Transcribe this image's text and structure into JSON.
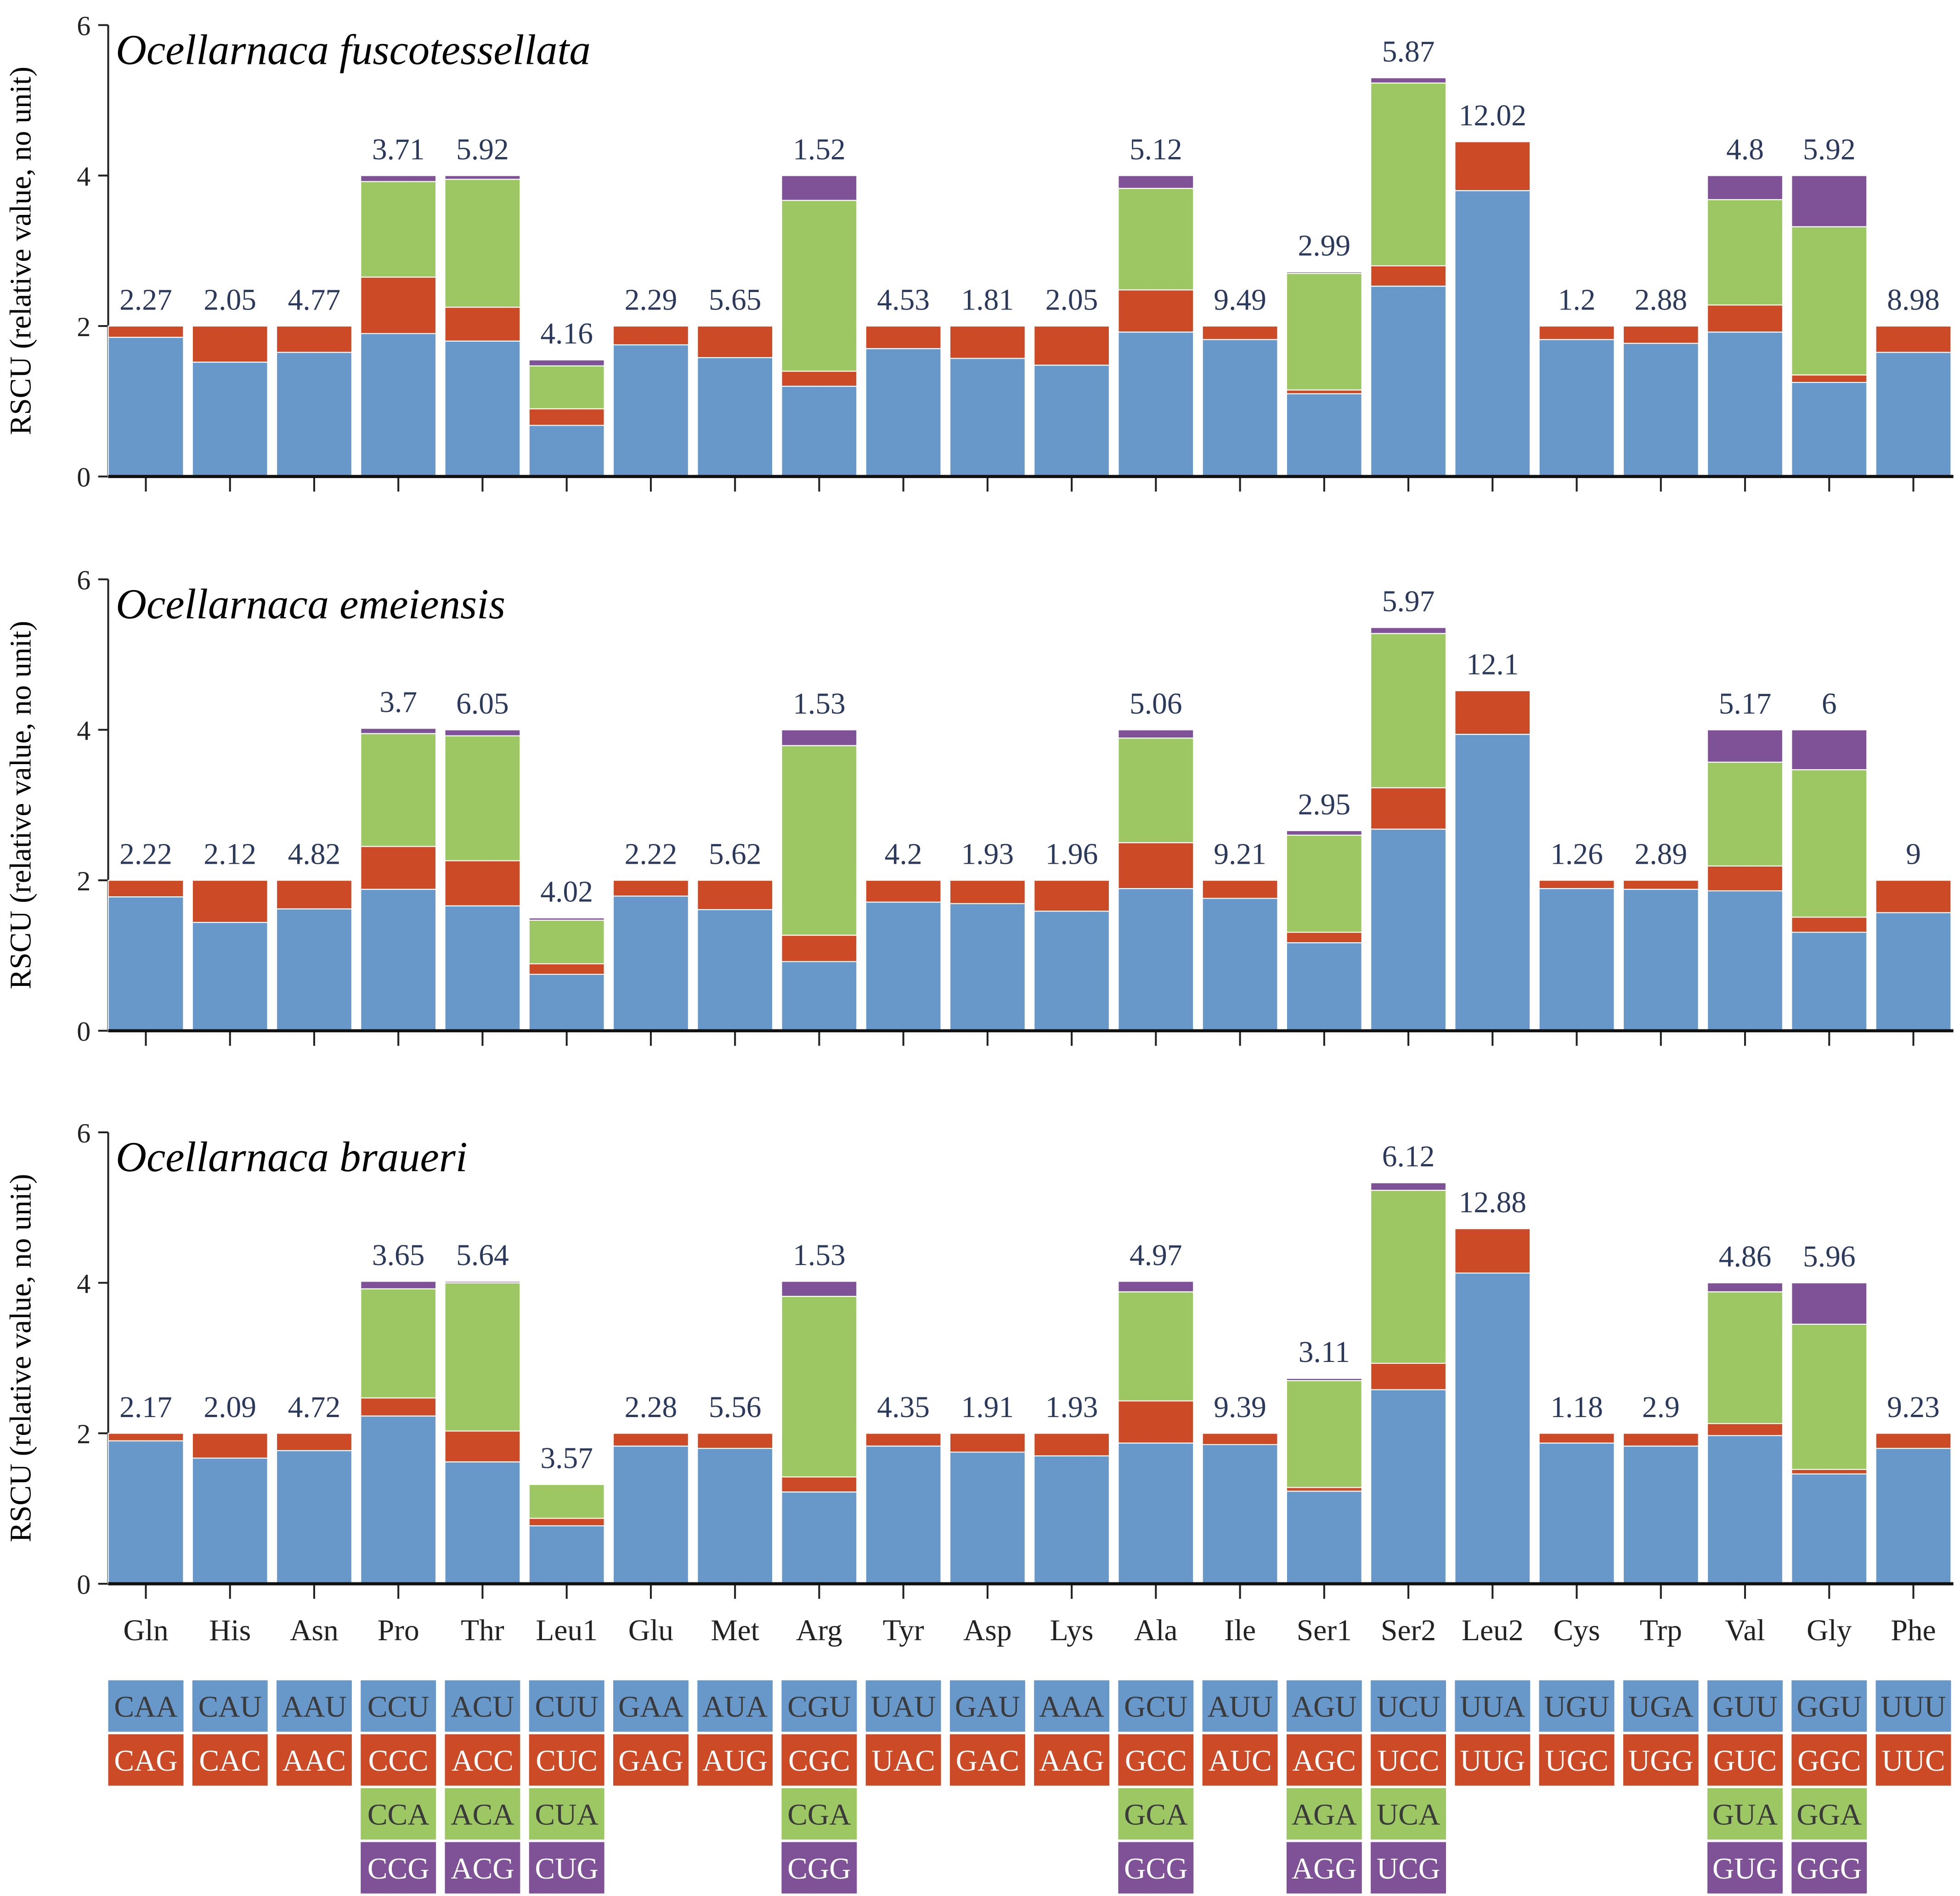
{
  "chart_data": {
    "type": "bar",
    "stacked": true,
    "ylabel": "RSCU (relative value, no unit)",
    "ylim": [
      0,
      6
    ],
    "yticks": [
      0,
      2,
      4,
      6
    ],
    "categories": [
      "Gln",
      "His",
      "Asn",
      "Pro",
      "Thr",
      "Leu1",
      "Glu",
      "Met",
      "Arg",
      "Tyr",
      "Asp",
      "Lys",
      "Ala",
      "Ile",
      "Ser1",
      "Ser2",
      "Leu2",
      "Cys",
      "Trp",
      "Val",
      "Gly",
      "Phe"
    ],
    "colors": [
      "#6798c9",
      "#cc4a26",
      "#9cc763",
      "#7f5298"
    ],
    "codons": [
      [
        "CAA",
        "CAG"
      ],
      [
        "CAU",
        "CAC"
      ],
      [
        "AAU",
        "AAC"
      ],
      [
        "CCU",
        "CCC",
        "CCA",
        "CCG"
      ],
      [
        "ACU",
        "ACC",
        "ACA",
        "ACG"
      ],
      [
        "CUU",
        "CUC",
        "CUA",
        "CUG"
      ],
      [
        "GAA",
        "GAG"
      ],
      [
        "AUA",
        "AUG"
      ],
      [
        "CGU",
        "CGC",
        "CGA",
        "CGG"
      ],
      [
        "UAU",
        "UAC"
      ],
      [
        "GAU",
        "GAC"
      ],
      [
        "AAA",
        "AAG"
      ],
      [
        "GCU",
        "GCC",
        "GCA",
        "GCG"
      ],
      [
        "AUU",
        "AUC"
      ],
      [
        "AGU",
        "AGC",
        "AGA",
        "AGG"
      ],
      [
        "UCU",
        "UCC",
        "UCA",
        "UCG"
      ],
      [
        "UUA",
        "UUG"
      ],
      [
        "UGU",
        "UGC"
      ],
      [
        "UGA",
        "UGG"
      ],
      [
        "GUU",
        "GUC",
        "GUA",
        "GUG"
      ],
      [
        "GGU",
        "GGC",
        "GGA",
        "GGG"
      ],
      [
        "UUU",
        "UUC"
      ]
    ],
    "panels": [
      {
        "title": "Ocellarnaca fuscotessellata",
        "labels": [
          "2.27",
          "2.05",
          "4.77",
          "3.71",
          "5.92",
          "4.16",
          "2.29",
          "5.65",
          "1.52",
          "4.53",
          "1.81",
          "2.05",
          "5.12",
          "9.49",
          "2.99",
          "5.87",
          "12.02",
          "1.2",
          "2.88",
          "4.8",
          "5.92",
          "8.98"
        ],
        "segments": [
          [
            1.85,
            0.15
          ],
          [
            1.52,
            0.48
          ],
          [
            1.65,
            0.35
          ],
          [
            1.9,
            0.75,
            1.27,
            0.08
          ],
          [
            1.8,
            0.45,
            1.7,
            0.05
          ],
          [
            0.68,
            0.22,
            0.57,
            0.08
          ],
          [
            1.75,
            0.25
          ],
          [
            1.58,
            0.42
          ],
          [
            1.2,
            0.2,
            2.27,
            0.33
          ],
          [
            1.7,
            0.3
          ],
          [
            1.57,
            0.43
          ],
          [
            1.48,
            0.52
          ],
          [
            1.92,
            0.56,
            1.35,
            0.17
          ],
          [
            1.82,
            0.18
          ],
          [
            1.1,
            0.05,
            1.55,
            0.02
          ],
          [
            2.53,
            0.27,
            2.43,
            0.07
          ],
          [
            3.8,
            0.65
          ],
          [
            1.82,
            0.18
          ],
          [
            1.77,
            0.23
          ],
          [
            1.92,
            0.36,
            1.4,
            0.32
          ],
          [
            1.25,
            0.1,
            1.97,
            0.68
          ],
          [
            1.65,
            0.35
          ]
        ]
      },
      {
        "title": "Ocellarnaca emeiensis",
        "labels": [
          "2.22",
          "2.12",
          "4.82",
          "3.7",
          "6.05",
          "4.02",
          "2.22",
          "5.62",
          "1.53",
          "4.2",
          "1.93",
          "1.96",
          "5.06",
          "9.21",
          "2.95",
          "5.97",
          "12.1",
          "1.26",
          "2.89",
          "5.17",
          "6",
          "9"
        ],
        "segments": [
          [
            1.78,
            0.22
          ],
          [
            1.44,
            0.56
          ],
          [
            1.62,
            0.38
          ],
          [
            1.88,
            0.57,
            1.5,
            0.07
          ],
          [
            1.66,
            0.6,
            1.66,
            0.08
          ],
          [
            0.75,
            0.14,
            0.58,
            0.03
          ],
          [
            1.79,
            0.21
          ],
          [
            1.61,
            0.39
          ],
          [
            0.92,
            0.35,
            2.52,
            0.21
          ],
          [
            1.71,
            0.29
          ],
          [
            1.69,
            0.31
          ],
          [
            1.59,
            0.41
          ],
          [
            1.89,
            0.61,
            1.39,
            0.11
          ],
          [
            1.76,
            0.24
          ],
          [
            1.17,
            0.14,
            1.29,
            0.06
          ],
          [
            2.68,
            0.55,
            2.05,
            0.08
          ],
          [
            3.94,
            0.58
          ],
          [
            1.89,
            0.11
          ],
          [
            1.88,
            0.12
          ],
          [
            1.86,
            0.33,
            1.38,
            0.43
          ],
          [
            1.31,
            0.2,
            1.96,
            0.53
          ],
          [
            1.57,
            0.43
          ]
        ]
      },
      {
        "title": "Ocellarnaca braueri",
        "labels": [
          "2.17",
          "2.09",
          "4.72",
          "3.65",
          "5.64",
          "3.57",
          "2.28",
          "5.56",
          "1.53",
          "4.35",
          "1.91",
          "1.93",
          "4.97",
          "9.39",
          "3.11",
          "6.12",
          "12.88",
          "1.18",
          "2.9",
          "4.86",
          "5.96",
          "9.23"
        ],
        "segments": [
          [
            1.9,
            0.1
          ],
          [
            1.67,
            0.33
          ],
          [
            1.77,
            0.23
          ],
          [
            2.23,
            0.24,
            1.45,
            0.1
          ],
          [
            1.62,
            0.41,
            1.97,
            0.02
          ],
          [
            0.77,
            0.1,
            0.45,
            0
          ],
          [
            1.83,
            0.17
          ],
          [
            1.8,
            0.2
          ],
          [
            1.22,
            0.2,
            2.4,
            0.2
          ],
          [
            1.83,
            0.17
          ],
          [
            1.75,
            0.25
          ],
          [
            1.7,
            0.3
          ],
          [
            1.87,
            0.56,
            1.45,
            0.14
          ],
          [
            1.85,
            0.15
          ],
          [
            1.23,
            0.05,
            1.42,
            0.03
          ],
          [
            2.58,
            0.35,
            2.3,
            0.1
          ],
          [
            4.13,
            0.59
          ],
          [
            1.87,
            0.13
          ],
          [
            1.83,
            0.17
          ],
          [
            1.97,
            0.16,
            1.75,
            0.12
          ],
          [
            1.46,
            0.06,
            1.93,
            0.55
          ],
          [
            1.8,
            0.2
          ]
        ]
      }
    ]
  }
}
